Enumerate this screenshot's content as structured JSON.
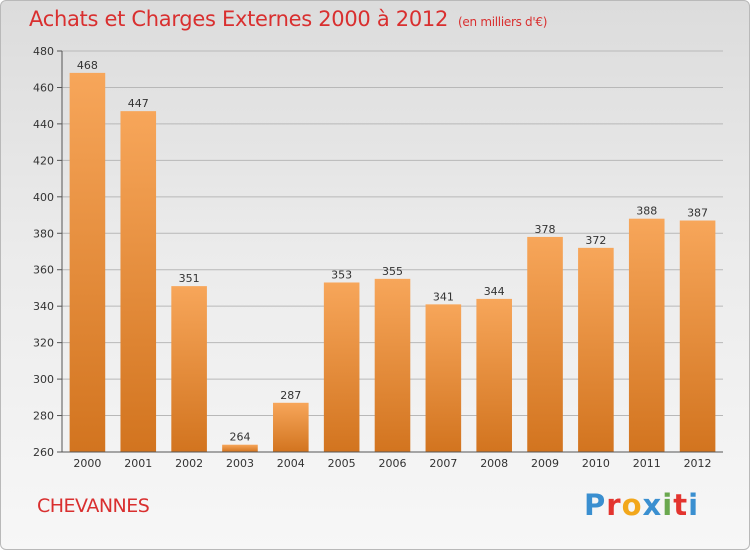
{
  "title": "Achats et Charges Externes 2000 à 2012",
  "unit": "(en milliers d'€)",
  "commune": "CHEVANNES",
  "logo": {
    "text": "Proxiti",
    "letter_colors": [
      "#3a8fd0",
      "#e3342f",
      "#f2a71b",
      "#3a8fd0",
      "#6aa84f",
      "#e3342f",
      "#3a8fd0"
    ]
  },
  "colors": {
    "title": "#d92f2f",
    "bar_top": "#f7a65a",
    "bar_bottom": "#d2741f",
    "grid": "#b8b8b8"
  },
  "chart_data": {
    "type": "bar",
    "categories": [
      "2000",
      "2001",
      "2002",
      "2003",
      "2004",
      "2005",
      "2006",
      "2007",
      "2008",
      "2009",
      "2010",
      "2011",
      "2012"
    ],
    "values": [
      468,
      447,
      351,
      264,
      287,
      353,
      355,
      341,
      344,
      378,
      372,
      388,
      387
    ],
    "ylim": [
      260,
      480
    ],
    "yticks": [
      260,
      280,
      300,
      320,
      340,
      360,
      380,
      400,
      420,
      440,
      460,
      480
    ],
    "grid": true,
    "legend": "none"
  }
}
